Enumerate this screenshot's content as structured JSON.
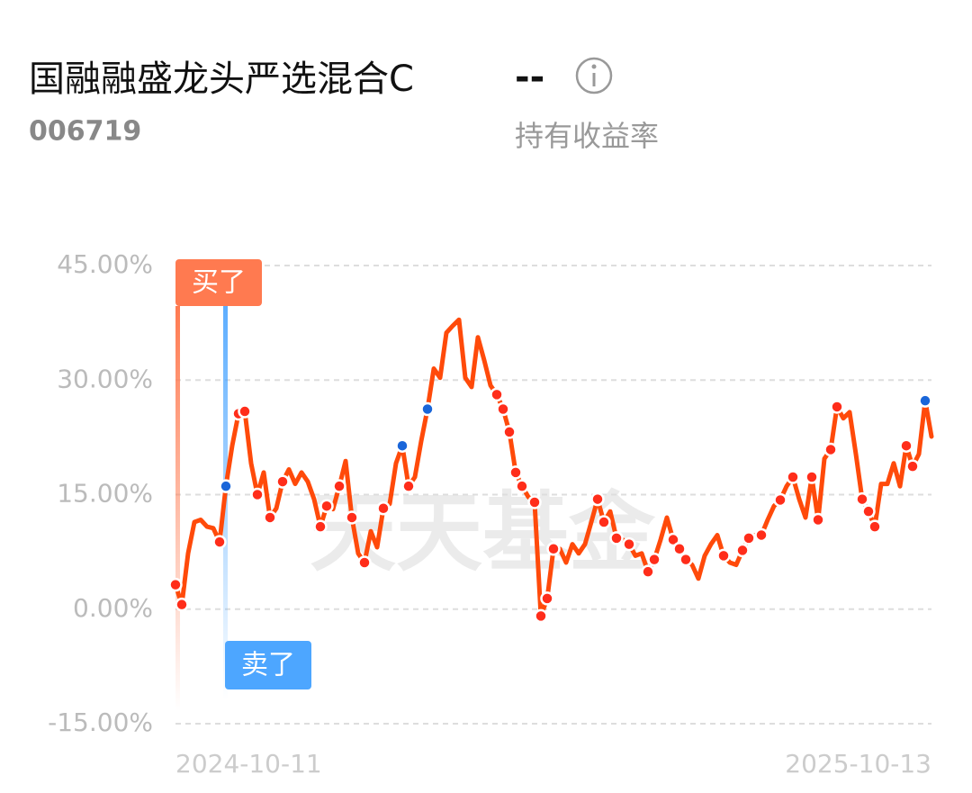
{
  "header": {
    "title": "国融融盛龙头严选混合C",
    "value": "--",
    "code": "006719",
    "value_caption": "持有收益率"
  },
  "chart_data": {
    "type": "line",
    "watermark": "天天基金",
    "color": "#ff4a0a",
    "ylim": [
      -15,
      45
    ],
    "yticks": [
      {
        "value": 45,
        "label": "45.00%"
      },
      {
        "value": 30,
        "label": "30.00%"
      },
      {
        "value": 15,
        "label": "15.00%"
      },
      {
        "value": 0,
        "label": "0.00%"
      },
      {
        "value": -15,
        "label": "-15.00%"
      }
    ],
    "grid": true,
    "categories": [
      "2024-10-11",
      null,
      null,
      null,
      null,
      null,
      null,
      null,
      null,
      null,
      null,
      null,
      null,
      null,
      null,
      null,
      null,
      null,
      null,
      null,
      null,
      null,
      null,
      null,
      null,
      null,
      null,
      null,
      null,
      null,
      null,
      null,
      null,
      null,
      null,
      null,
      null,
      null,
      null,
      null,
      null,
      null,
      null,
      null,
      null,
      null,
      null,
      null,
      null,
      null,
      null,
      null,
      null,
      null,
      null,
      null,
      null,
      null,
      null,
      null,
      null,
      null,
      null,
      null,
      null,
      null,
      null,
      null,
      null,
      null,
      null,
      null,
      null,
      null,
      null,
      null,
      null,
      null,
      null,
      null,
      null,
      null,
      null,
      null,
      null,
      null,
      null,
      null,
      null,
      null,
      null,
      null,
      null,
      null,
      null,
      null,
      null,
      null,
      null,
      null,
      null,
      null,
      null,
      null,
      null,
      null,
      null,
      null,
      null,
      null,
      null,
      null,
      null,
      null,
      null,
      null,
      null,
      null,
      null,
      null,
      "2025-10-13"
    ],
    "values": [
      3.2,
      0.6,
      7.3,
      11.4,
      11.7,
      10.8,
      10.6,
      8.8,
      16.1,
      21.4,
      25.6,
      25.9,
      19.1,
      15,
      17.9,
      12,
      13.2,
      16.7,
      18.3,
      16.4,
      17.9,
      16.7,
      14.4,
      10.8,
      13.5,
      13.1,
      16.1,
      19.4,
      12,
      7.3,
      6.1,
      10.2,
      8.1,
      13.2,
      13.8,
      19.1,
      21.4,
      16.1,
      17.3,
      22,
      26.2,
      31.5,
      30.3,
      36.2,
      37.1,
      37.9,
      30.3,
      29.1,
      35.6,
      32.6,
      29.3,
      28.1,
      26.2,
      23.2,
      17.9,
      16.1,
      14.7,
      14,
      -0.9,
      1.4,
      7.9,
      7.9,
      6.1,
      8.5,
      7.3,
      8.5,
      11.4,
      14.4,
      11.4,
      12.8,
      9.3,
      9.1,
      8.5,
      7,
      7.3,
      4.9,
      6.5,
      9.1,
      12,
      9.1,
      7.9,
      6.5,
      5.8,
      4,
      7,
      8.5,
      9.7,
      7,
      6.1,
      5.8,
      7.7,
      9.3,
      9.7,
      9.7,
      11.7,
      13.5,
      14.3,
      16.1,
      17.3,
      14.4,
      12,
      17.3,
      11.7,
      19.7,
      20.9,
      26.5,
      25,
      25.8,
      20.3,
      14.4,
      12.8,
      10.8,
      16.4,
      16.4,
      19.1,
      16.1,
      21.4,
      18.7,
      20.3,
      27.3,
      22.6
    ],
    "buy_points": {
      "color": "#ff2d1a",
      "points": [
        {
          "index": 0,
          "value": 3.2
        },
        {
          "index": 1,
          "value": 0.6
        },
        {
          "index": 7,
          "value": 8.8
        },
        {
          "index": 10,
          "value": 25.6
        },
        {
          "index": 11,
          "value": 25.9
        },
        {
          "index": 13,
          "value": 15
        },
        {
          "index": 15,
          "value": 12
        },
        {
          "index": 17,
          "value": 16.7
        },
        {
          "index": 23,
          "value": 10.8
        },
        {
          "index": 24,
          "value": 13.5
        },
        {
          "index": 26,
          "value": 16.1
        },
        {
          "index": 28,
          "value": 12
        },
        {
          "index": 30,
          "value": 6.1
        },
        {
          "index": 33,
          "value": 13.2
        },
        {
          "index": 37,
          "value": 16.1
        },
        {
          "index": 51,
          "value": 28.1
        },
        {
          "index": 52,
          "value": 26.2
        },
        {
          "index": 53,
          "value": 23.2
        },
        {
          "index": 54,
          "value": 17.9
        },
        {
          "index": 55,
          "value": 16.1
        },
        {
          "index": 57,
          "value": 14
        },
        {
          "index": 58,
          "value": -0.9
        },
        {
          "index": 59,
          "value": 1.4
        },
        {
          "index": 60,
          "value": 7.9
        },
        {
          "index": 67,
          "value": 14.4
        },
        {
          "index": 68,
          "value": 11.4
        },
        {
          "index": 70,
          "value": 9.3
        },
        {
          "index": 72,
          "value": 8.5
        },
        {
          "index": 75,
          "value": 4.9
        },
        {
          "index": 76,
          "value": 6.5
        },
        {
          "index": 79,
          "value": 9.1
        },
        {
          "index": 80,
          "value": 7.9
        },
        {
          "index": 81,
          "value": 6.5
        },
        {
          "index": 87,
          "value": 7
        },
        {
          "index": 90,
          "value": 7.7
        },
        {
          "index": 91,
          "value": 9.3
        },
        {
          "index": 93,
          "value": 9.7
        },
        {
          "index": 96,
          "value": 14.3
        },
        {
          "index": 98,
          "value": 17.3
        },
        {
          "index": 101,
          "value": 17.3
        },
        {
          "index": 102,
          "value": 11.7
        },
        {
          "index": 104,
          "value": 20.9
        },
        {
          "index": 105,
          "value": 26.5
        },
        {
          "index": 109,
          "value": 14.4
        },
        {
          "index": 110,
          "value": 12.8
        },
        {
          "index": 111,
          "value": 10.8
        },
        {
          "index": 116,
          "value": 21.4
        },
        {
          "index": 117,
          "value": 18.7
        }
      ]
    },
    "sell_points": {
      "color": "#1a66d9",
      "points": [
        {
          "index": 8,
          "value": 16.1
        },
        {
          "index": 36,
          "value": 21.4
        },
        {
          "index": 40,
          "value": 26.2
        },
        {
          "index": 119,
          "value": 27.3
        }
      ]
    },
    "annotations": [
      "买了",
      "卖了"
    ]
  }
}
